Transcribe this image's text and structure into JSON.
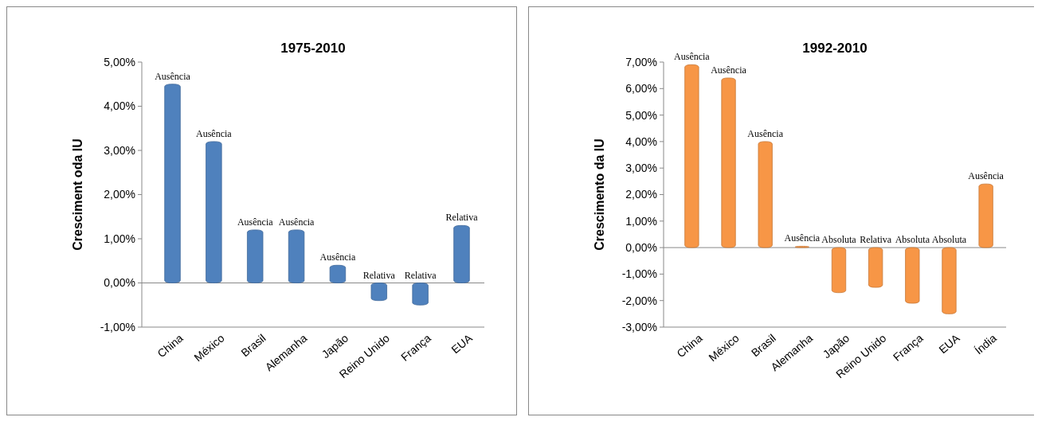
{
  "chart_data": [
    {
      "type": "bar",
      "title": "1975-2010",
      "ylabel": "Cresciment oda IU",
      "categories": [
        "China",
        "México",
        "Brasil",
        "Alemanha",
        "Japão",
        "Reino Unido",
        "França",
        "EUA"
      ],
      "values": [
        4.5,
        3.2,
        1.2,
        1.2,
        0.4,
        -0.4,
        -0.5,
        1.3
      ],
      "color": "#4f81bd",
      "value_labels": [
        "Ausência",
        "Ausência",
        "Ausência",
        "Ausência",
        "Ausência",
        "Relativa",
        "Relativa",
        "Relativa"
      ],
      "ylim": [
        -1,
        5
      ],
      "yticks": [
        {
          "value": -1,
          "label": "-1,00%"
        },
        {
          "value": 0,
          "label": "0,00%"
        },
        {
          "value": 1,
          "label": "1,00%"
        },
        {
          "value": 2,
          "label": "2,00%"
        },
        {
          "value": 3,
          "label": "3,00%"
        },
        {
          "value": 4,
          "label": "4,00%"
        },
        {
          "value": 5,
          "label": "5,00%"
        }
      ]
    },
    {
      "type": "bar",
      "title": "1992-2010",
      "ylabel": "Crescimento da IU",
      "categories": [
        "China",
        "México",
        "Brasil",
        "Alemanha",
        "Japão",
        "Reino Unido",
        "França",
        "EUA",
        "Índia"
      ],
      "values": [
        6.9,
        6.4,
        4.0,
        0.05,
        -1.7,
        -1.5,
        -2.1,
        -2.5,
        2.4
      ],
      "color": "#f79646",
      "value_labels": [
        "Ausência",
        "Ausência",
        "Ausência",
        "Ausência",
        "Absoluta",
        "Relativa",
        "Absoluta",
        "Absoluta",
        "Ausência"
      ],
      "ylim": [
        -3,
        7
      ],
      "yticks": [
        {
          "value": -3,
          "label": "-3,00%"
        },
        {
          "value": -2,
          "label": "-2,00%"
        },
        {
          "value": -1,
          "label": "-1,00%"
        },
        {
          "value": 0,
          "label": "0,00%"
        },
        {
          "value": 1,
          "label": "1,00%"
        },
        {
          "value": 2,
          "label": "2,00%"
        },
        {
          "value": 3,
          "label": "3,00%"
        },
        {
          "value": 4,
          "label": "4,00%"
        },
        {
          "value": 5,
          "label": "5,00%"
        },
        {
          "value": 6,
          "label": "6,00%"
        },
        {
          "value": 7,
          "label": "7,00%"
        }
      ]
    }
  ]
}
